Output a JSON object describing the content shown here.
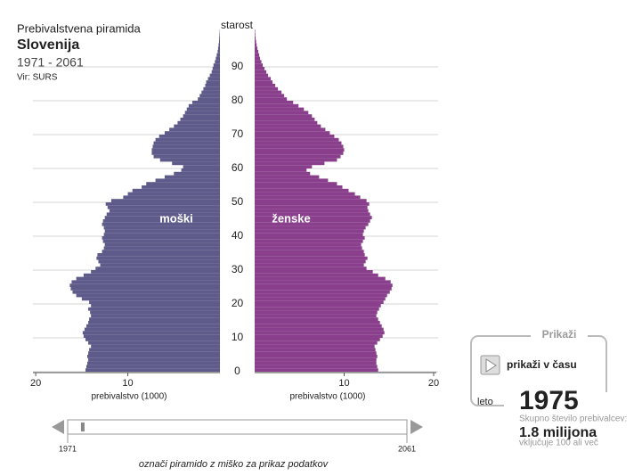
{
  "header": {
    "subtitle_top": "Prebivalstvena piramida",
    "title": "Slovenija",
    "period": "1971 - 2061",
    "source": "Vir: SURS"
  },
  "chart_data": {
    "type": "pyramid",
    "y_label": "starost",
    "x_label": "prebivalstvo (1000)",
    "ages": [
      0,
      1,
      2,
      3,
      4,
      5,
      6,
      7,
      8,
      9,
      10,
      11,
      12,
      13,
      14,
      15,
      16,
      17,
      18,
      19,
      20,
      21,
      22,
      23,
      24,
      25,
      26,
      27,
      28,
      29,
      30,
      31,
      32,
      33,
      34,
      35,
      36,
      37,
      38,
      39,
      40,
      41,
      42,
      43,
      44,
      45,
      46,
      47,
      48,
      49,
      50,
      51,
      52,
      53,
      54,
      55,
      56,
      57,
      58,
      59,
      60,
      61,
      62,
      63,
      64,
      65,
      66,
      67,
      68,
      69,
      70,
      71,
      72,
      73,
      74,
      75,
      76,
      77,
      78,
      79,
      80,
      81,
      82,
      83,
      84,
      85,
      86,
      87,
      88,
      89,
      90,
      91,
      92,
      93,
      94,
      95,
      96,
      97,
      98,
      99,
      100
    ],
    "series": [
      {
        "name": "moški",
        "color": "#5e5b8a",
        "values": [
          14.6,
          14.5,
          14.4,
          14.3,
          14.4,
          14.3,
          14.2,
          14.0,
          14.3,
          14.6,
          14.8,
          14.9,
          14.7,
          14.5,
          14.3,
          14.2,
          14.0,
          14.1,
          14.3,
          14.0,
          14.2,
          15.0,
          15.6,
          16.0,
          16.2,
          16.3,
          16.1,
          15.6,
          14.8,
          14.0,
          13.5,
          13.0,
          13.2,
          13.4,
          13.3,
          12.8,
          12.6,
          12.5,
          12.7,
          12.8,
          12.6,
          12.5,
          12.6,
          12.8,
          12.7,
          12.5,
          12.3,
          12.0,
          12.2,
          12.4,
          11.8,
          10.5,
          10.0,
          9.5,
          8.5,
          8.0,
          7.0,
          6.0,
          5.0,
          4.2,
          4.0,
          5.2,
          6.5,
          7.2,
          7.4,
          7.4,
          7.3,
          7.2,
          7.0,
          6.6,
          6.0,
          5.5,
          5.0,
          4.6,
          4.3,
          4.0,
          3.8,
          3.6,
          3.4,
          3.0,
          2.4,
          2.2,
          2.0,
          1.8,
          1.6,
          1.5,
          1.3,
          1.1,
          0.9,
          0.8,
          0.7,
          0.55,
          0.45,
          0.35,
          0.25,
          0.2,
          0.15,
          0.1,
          0.08,
          0.05,
          0.03
        ]
      },
      {
        "name": "ženske",
        "color": "#8a3f8c",
        "values": [
          13.8,
          13.7,
          13.6,
          13.6,
          13.7,
          13.6,
          13.5,
          13.4,
          13.7,
          14.0,
          14.3,
          14.5,
          14.4,
          14.2,
          14.0,
          13.8,
          13.6,
          13.7,
          13.9,
          14.1,
          14.4,
          14.6,
          14.8,
          15.1,
          15.3,
          15.4,
          15.2,
          14.6,
          13.8,
          13.2,
          12.5,
          12.2,
          12.4,
          12.6,
          12.3,
          12.2,
          12.0,
          11.9,
          12.1,
          12.3,
          12.1,
          12.2,
          12.4,
          12.7,
          12.9,
          13.1,
          12.9,
          12.7,
          12.6,
          12.8,
          12.5,
          11.8,
          11.2,
          10.5,
          9.8,
          9.2,
          8.2,
          7.2,
          6.2,
          5.8,
          6.4,
          7.8,
          9.2,
          9.6,
          9.9,
          10.0,
          9.9,
          9.7,
          9.4,
          8.9,
          8.4,
          7.9,
          7.4,
          7.0,
          6.7,
          6.4,
          6.0,
          5.5,
          4.9,
          4.3,
          3.6,
          3.3,
          3.0,
          2.6,
          2.3,
          2.0,
          1.8,
          1.5,
          1.3,
          1.1,
          0.9,
          0.75,
          0.6,
          0.5,
          0.4,
          0.3,
          0.22,
          0.16,
          0.1,
          0.07,
          0.05
        ]
      }
    ],
    "xlim": [
      0,
      20.3
    ],
    "xticks": [
      10,
      20
    ],
    "ylim": [
      0,
      100
    ],
    "yticks": [
      0,
      10,
      20,
      30,
      40,
      50,
      60,
      70,
      80,
      90
    ],
    "grid": true
  },
  "panel": {
    "title": "Prikaži",
    "button": "prikaži v času",
    "year_label": "leto",
    "year": 1975,
    "total_label": "Skupno število prebivalcev:",
    "total": "1.8 milijona",
    "total_note": "vključuje 100 ali več"
  },
  "slider": {
    "range": [
      1971,
      2061
    ],
    "hint": "označi piramido z miško za prikaz podatkov"
  }
}
